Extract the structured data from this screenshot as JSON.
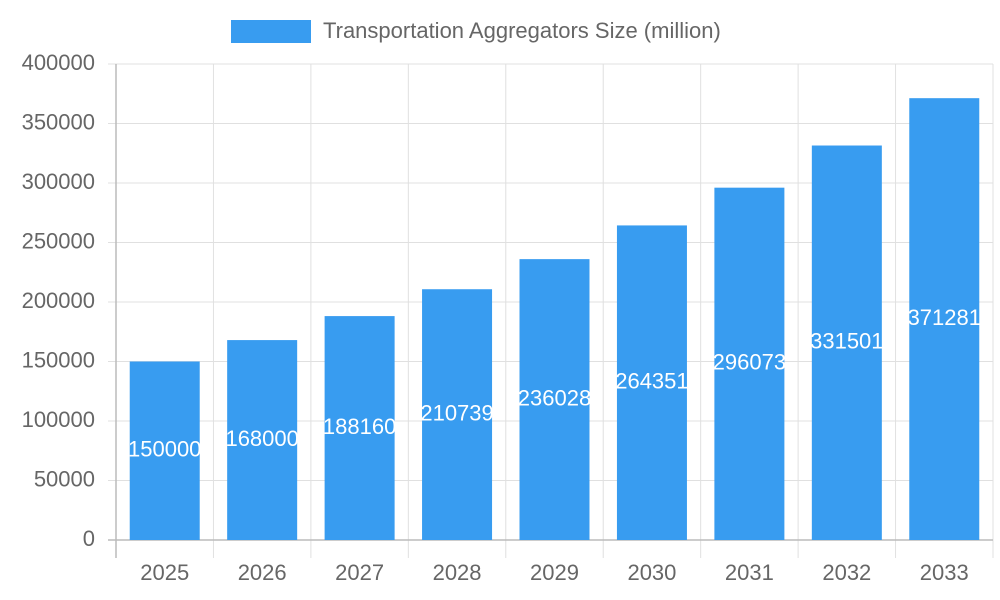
{
  "chart_data": {
    "type": "bar",
    "categories": [
      "2025",
      "2026",
      "2027",
      "2028",
      "2029",
      "2030",
      "2031",
      "2032",
      "2033"
    ],
    "series": [
      {
        "name": "Transportation Aggregators Size (million)",
        "color": "#389cf0",
        "values": [
          150000,
          168000,
          188160,
          210739,
          236028,
          264351,
          296073,
          331501,
          371281
        ]
      }
    ],
    "ylim": [
      0,
      400000
    ],
    "yticks": [
      0,
      50000,
      100000,
      150000,
      200000,
      250000,
      300000,
      350000,
      400000
    ],
    "grid": true,
    "legend": "top"
  }
}
